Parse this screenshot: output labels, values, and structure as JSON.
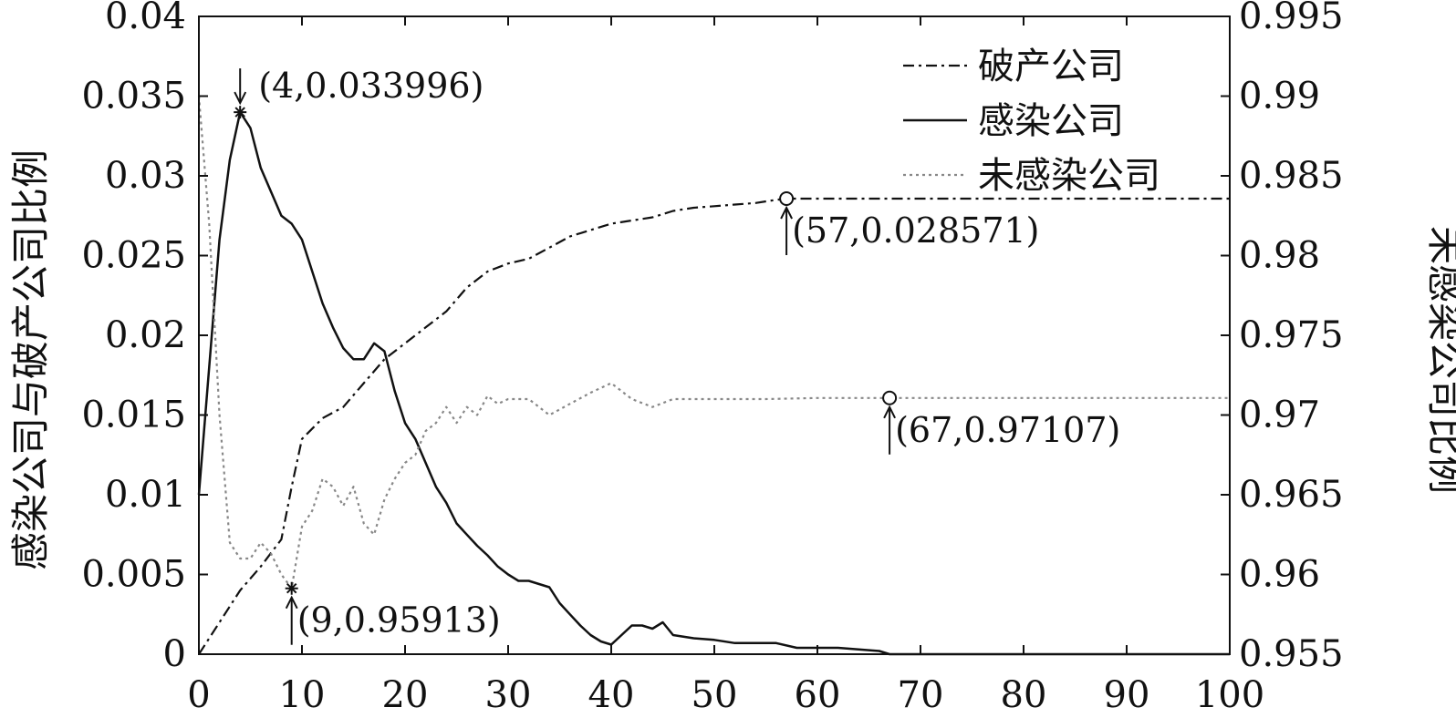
{
  "chart_data": {
    "type": "line",
    "xlabel": "",
    "ylabel_left": "感染公司与破产公司比例",
    "ylabel_right": "未感染公司比例",
    "xlim": [
      0,
      100
    ],
    "ylim_left": [
      0,
      0.04
    ],
    "ylim_right": [
      0.955,
      0.995
    ],
    "x_ticks": [
      "0",
      "10",
      "20",
      "30",
      "40",
      "50",
      "60",
      "70",
      "80",
      "90",
      "100"
    ],
    "y_left_ticks": [
      "0",
      "0.005",
      "0.01",
      "0.015",
      "0.02",
      "0.025",
      "0.03",
      "0.035",
      "0.04"
    ],
    "y_right_ticks": [
      "0.955",
      "0.96",
      "0.965",
      "0.97",
      "0.975",
      "0.98",
      "0.985",
      "0.99",
      "0.995"
    ],
    "grid": false,
    "legend_position": "top-right",
    "series": [
      {
        "name": "破产公司",
        "axis": "left",
        "style": "dash-dot",
        "color": "#111111",
        "x": [
          0,
          2,
          4,
          6,
          8,
          9,
          10,
          12,
          14,
          16,
          18,
          20,
          22,
          24,
          26,
          28,
          30,
          32,
          34,
          36,
          38,
          40,
          42,
          44,
          46,
          48,
          50,
          52,
          54,
          56,
          57,
          60,
          70,
          80,
          90,
          100
        ],
        "y": [
          0,
          0.002,
          0.004,
          0.0055,
          0.0072,
          0.0105,
          0.0135,
          0.0148,
          0.0155,
          0.017,
          0.0185,
          0.0195,
          0.0205,
          0.0215,
          0.023,
          0.024,
          0.0245,
          0.0248,
          0.0255,
          0.0262,
          0.0266,
          0.027,
          0.0272,
          0.0274,
          0.0278,
          0.028,
          0.0281,
          0.0282,
          0.0283,
          0.0285,
          0.028571,
          0.028571,
          0.028571,
          0.028571,
          0.028571,
          0.028571
        ]
      },
      {
        "name": "感染公司",
        "axis": "left",
        "style": "solid",
        "color": "#111111",
        "x": [
          0,
          1,
          2,
          3,
          4,
          5,
          6,
          7,
          8,
          9,
          10,
          11,
          12,
          13,
          14,
          15,
          16,
          17,
          18,
          19,
          20,
          21,
          22,
          23,
          24,
          25,
          26,
          27,
          28,
          29,
          30,
          31,
          32,
          33,
          34,
          35,
          36,
          37,
          38,
          39,
          40,
          41,
          42,
          43,
          44,
          45,
          46,
          48,
          50,
          52,
          54,
          56,
          58,
          60,
          62,
          64,
          66,
          67,
          70,
          80,
          90,
          100
        ],
        "y": [
          0.01,
          0.018,
          0.026,
          0.031,
          0.033996,
          0.033,
          0.0305,
          0.029,
          0.0275,
          0.027,
          0.026,
          0.024,
          0.022,
          0.0205,
          0.0192,
          0.0185,
          0.0185,
          0.0195,
          0.019,
          0.0165,
          0.0145,
          0.0135,
          0.012,
          0.0105,
          0.0095,
          0.0082,
          0.0075,
          0.0068,
          0.0062,
          0.0055,
          0.005,
          0.0046,
          0.0046,
          0.0044,
          0.0042,
          0.0032,
          0.0025,
          0.0018,
          0.0012,
          0.0008,
          0.0006,
          0.0012,
          0.0018,
          0.0018,
          0.0016,
          0.002,
          0.0012,
          0.001,
          0.0009,
          0.0007,
          0.0007,
          0.0007,
          0.0004,
          0.0004,
          0.0004,
          0.0003,
          0.0002,
          0,
          0,
          0,
          0,
          0
        ]
      },
      {
        "name": "未感染公司",
        "axis": "right",
        "style": "dotted",
        "color": "#888888",
        "x": [
          0,
          1,
          2,
          3,
          4,
          5,
          6,
          7,
          8,
          9,
          10,
          11,
          12,
          13,
          14,
          15,
          16,
          17,
          18,
          19,
          20,
          21,
          22,
          23,
          24,
          25,
          26,
          27,
          28,
          29,
          30,
          32,
          34,
          36,
          38,
          40,
          42,
          44,
          46,
          48,
          50,
          55,
          60,
          65,
          67,
          70,
          80,
          90,
          100
        ],
        "y": [
          0.99,
          0.982,
          0.97,
          0.962,
          0.961,
          0.961,
          0.962,
          0.9613,
          0.96,
          0.95913,
          0.963,
          0.964,
          0.966,
          0.9655,
          0.9643,
          0.9655,
          0.9632,
          0.9625,
          0.9647,
          0.966,
          0.967,
          0.9675,
          0.969,
          0.9695,
          0.9705,
          0.9695,
          0.9705,
          0.97,
          0.9712,
          0.9707,
          0.971,
          0.971,
          0.97,
          0.9707,
          0.9714,
          0.972,
          0.971,
          0.9705,
          0.971,
          0.971,
          0.971,
          0.971,
          0.97107,
          0.97107,
          0.97107,
          0.97107,
          0.97107,
          0.97107,
          0.97107
        ]
      }
    ],
    "annotations": [
      {
        "text": "(4,0.033996)",
        "x": 4,
        "y": 0.033996,
        "axis": "left",
        "marker": "star",
        "arrow": "down"
      },
      {
        "text": "(9,0.95913)",
        "x": 9,
        "y": 0.95913,
        "axis": "right",
        "marker": "star",
        "arrow": "up"
      },
      {
        "text": "(57,0.028571)",
        "x": 57,
        "y": 0.028571,
        "axis": "left",
        "marker": "circle",
        "arrow": "up"
      },
      {
        "text": "(67,0.97107)",
        "x": 67,
        "y": 0.97107,
        "axis": "right",
        "marker": "circle",
        "arrow": "up"
      }
    ]
  }
}
